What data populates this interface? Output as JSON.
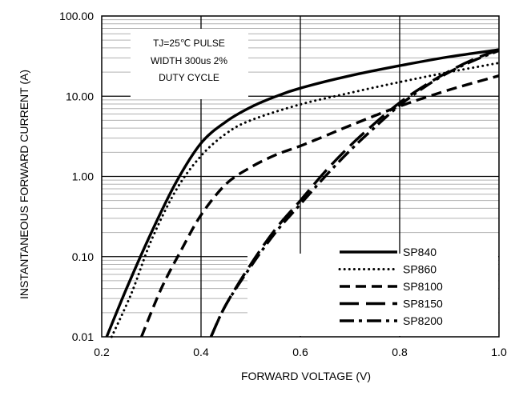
{
  "chart_data": {
    "type": "line",
    "xlabel": "FORWARD VOLTAGE (V)",
    "ylabel": "INSTANTANEOUS FORWARD CURRENT (A)",
    "xlim": [
      0.2,
      1.0
    ],
    "ylim": [
      0.01,
      100
    ],
    "yscale": "log",
    "grid": true,
    "legend_position": "bottom-right",
    "x_ticks": [
      "0.2",
      "0.4",
      "0.6",
      "0.8",
      "1.0"
    ],
    "y_ticks": [
      "0.01",
      "0.10",
      "1.00",
      "10.00",
      "100.00"
    ],
    "annotation": [
      "TJ=25℃ PULSE",
      "WIDTH 300us 2%",
      "DUTY CYCLE"
    ],
    "series": [
      {
        "name": "SP840",
        "style": "solid",
        "x": [
          0.21,
          0.25,
          0.3,
          0.35,
          0.4,
          0.45,
          0.5,
          0.55,
          0.6,
          0.7,
          0.8,
          0.9,
          1.0
        ],
        "y": [
          0.01,
          0.04,
          0.2,
          0.85,
          2.6,
          4.8,
          7.3,
          9.9,
          12.6,
          18,
          24,
          31,
          38
        ]
      },
      {
        "name": "SP860",
        "style": "dotted",
        "x": [
          0.22,
          0.26,
          0.3,
          0.35,
          0.4,
          0.45,
          0.5,
          0.6,
          0.7,
          0.8,
          0.9,
          1.0
        ],
        "y": [
          0.01,
          0.035,
          0.16,
          0.68,
          1.8,
          3.4,
          5.0,
          7.9,
          11,
          15,
          20,
          26
        ]
      },
      {
        "name": "SP8100",
        "style": "dashed",
        "x": [
          0.28,
          0.32,
          0.36,
          0.4,
          0.45,
          0.5,
          0.55,
          0.6,
          0.65,
          0.7,
          0.8,
          0.9,
          1.0
        ],
        "y": [
          0.01,
          0.04,
          0.12,
          0.33,
          0.8,
          1.3,
          1.85,
          2.4,
          3.2,
          4.3,
          7.5,
          12,
          18
        ]
      },
      {
        "name": "SP8150",
        "style": "long-dash",
        "x": [
          0.42,
          0.45,
          0.5,
          0.55,
          0.6,
          0.65,
          0.7,
          0.75,
          0.8,
          0.85,
          0.9,
          0.95,
          1.0
        ],
        "y": [
          0.01,
          0.025,
          0.08,
          0.22,
          0.5,
          1.15,
          2.4,
          4.6,
          8.3,
          13.5,
          20.5,
          29,
          38
        ]
      },
      {
        "name": "SP8200",
        "style": "dash-dot",
        "x": [
          0.42,
          0.45,
          0.5,
          0.55,
          0.6,
          0.65,
          0.7,
          0.75,
          0.8,
          0.85,
          0.9,
          0.95,
          1.0
        ],
        "y": [
          0.01,
          0.025,
          0.075,
          0.2,
          0.45,
          1.0,
          2.1,
          4.1,
          7.7,
          13,
          20,
          28,
          37
        ]
      }
    ]
  }
}
